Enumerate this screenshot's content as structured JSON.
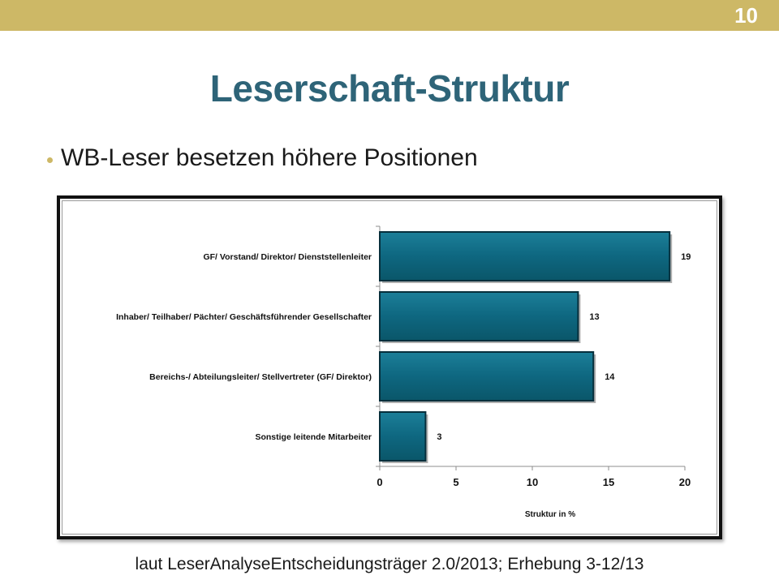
{
  "slide": {
    "page_number": "10",
    "title": "Leserschaft-Struktur",
    "bullet": "WB-Leser besetzen höhere Positionen",
    "source": "laut LeserAnalyseEntscheidungsträger 2.0/2013; Erhebung 3-12/13"
  },
  "colors": {
    "top_bar": "#cdb866",
    "title": "#2e6478",
    "bar_fill": "#0e6780",
    "bar_edge": "#062f3c"
  },
  "chart_data": {
    "type": "bar",
    "orientation": "horizontal",
    "categories": [
      "GF/ Vorstand/ Direktor/ Dienststellenleiter",
      "Inhaber/ Teilhaber/ Pächter/ Geschäftsführender Gesellschafter",
      "Bereichs-/ Abteilungsleiter/ Stellvertreter (GF/ Direktor)",
      "Sonstige leitende Mitarbeiter"
    ],
    "values": [
      19,
      13,
      14,
      3
    ],
    "data_labels": [
      "19",
      "13",
      "14",
      "3"
    ],
    "xlabel": "Struktur in %",
    "xlim": [
      0,
      20
    ],
    "xticks": [
      "0",
      "5",
      "10",
      "15",
      "20"
    ],
    "grid": false,
    "legend": "none"
  }
}
